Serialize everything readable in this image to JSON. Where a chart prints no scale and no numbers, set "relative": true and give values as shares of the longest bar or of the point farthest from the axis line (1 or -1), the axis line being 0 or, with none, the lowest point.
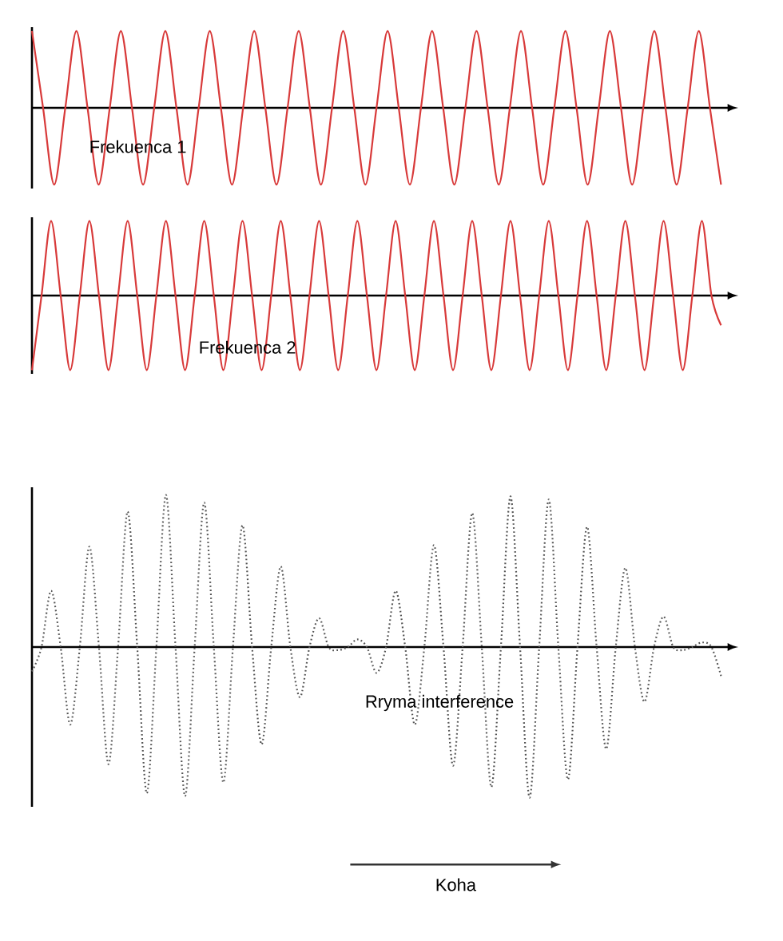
{
  "chart_data": [
    {
      "type": "line",
      "relative": true,
      "categories": [
        null,
        null,
        null,
        null,
        null,
        null,
        null,
        null,
        null,
        null,
        null,
        null,
        null,
        null,
        null,
        null,
        null,
        null,
        null,
        null,
        null,
        null,
        null,
        null,
        null,
        null,
        null,
        null,
        null,
        null,
        null,
        null,
        null,
        null,
        null,
        null,
        null,
        null,
        null,
        null,
        null,
        null,
        null,
        null,
        null,
        null,
        null,
        null,
        null,
        null,
        null,
        null,
        null,
        null,
        null,
        null,
        null,
        null,
        null,
        null,
        null,
        null,
        null
      ],
      "series": [
        {
          "name": "Frekuenca 1",
          "color": "#d83a3a",
          "values": [
            1,
            0,
            -1,
            0,
            1,
            0,
            -1,
            0,
            1,
            0,
            -1,
            0,
            1,
            0,
            -1,
            0,
            1,
            0,
            -1,
            0,
            1,
            0,
            -1,
            0,
            1,
            0,
            -1,
            0,
            1,
            0,
            -1,
            0,
            1,
            0,
            -1,
            0,
            1,
            0,
            -1,
            0,
            1,
            0,
            -1,
            0,
            1,
            0,
            -1,
            0,
            1,
            0,
            -1,
            0,
            1,
            0,
            -1,
            0,
            1,
            0,
            -1,
            0,
            1,
            0,
            -1
          ]
        }
      ]
    },
    {
      "type": "line",
      "relative": true,
      "categories": [
        null,
        null,
        null,
        null,
        null,
        null,
        null,
        null,
        null,
        null,
        null,
        null,
        null,
        null,
        null,
        null,
        null,
        null,
        null,
        null,
        null,
        null,
        null,
        null,
        null,
        null,
        null,
        null,
        null,
        null,
        null,
        null,
        null,
        null,
        null,
        null,
        null,
        null,
        null,
        null,
        null,
        null,
        null,
        null,
        null,
        null,
        null,
        null,
        null,
        null,
        null,
        null,
        null,
        null,
        null,
        null,
        null,
        null,
        null,
        null,
        null,
        null,
        null,
        null,
        null,
        null,
        null,
        null,
        null,
        null,
        null,
        null,
        null
      ],
      "series": [
        {
          "name": "Frekuenca 2",
          "color": "#d83a3a",
          "values": [
            -1,
            0,
            1,
            0,
            -1,
            0,
            1,
            0,
            -1,
            0,
            1,
            0,
            -1,
            0,
            1,
            0,
            -1,
            0,
            1,
            0,
            -1,
            0,
            1,
            0,
            -1,
            0,
            1,
            0,
            -1,
            0,
            1,
            0,
            -1,
            0,
            1,
            0,
            -1,
            0,
            1,
            0,
            -1,
            0,
            1,
            0,
            -1,
            0,
            1,
            0,
            -1,
            0,
            1,
            0,
            -1,
            0,
            1,
            0,
            -1,
            0,
            1,
            0,
            -1,
            0,
            1,
            0,
            -1,
            0,
            1,
            0,
            -1,
            0,
            1,
            0,
            -0.4
          ]
        }
      ]
    },
    {
      "type": "line",
      "relative": true,
      "xlabel": "Koha",
      "categories": [
        null,
        null,
        null,
        null,
        null,
        null,
        null,
        null,
        null,
        null,
        null,
        null,
        null,
        null,
        null,
        null,
        null,
        null,
        null,
        null,
        null,
        null,
        null,
        null,
        null,
        null,
        null,
        null,
        null,
        null,
        null,
        null,
        null,
        null,
        null,
        null,
        null,
        null,
        null,
        null,
        null,
        null,
        null,
        null,
        null,
        null,
        null,
        null,
        null,
        null,
        null,
        null,
        null,
        null,
        null,
        null,
        null,
        null,
        null,
        null,
        null,
        null,
        null,
        null,
        null,
        null,
        null,
        null,
        null,
        null,
        null,
        null,
        null
      ],
      "line_style": "dotted",
      "series": [
        {
          "name": "Rryma interference",
          "color": "#555555",
          "values": [
            -0.16,
            0,
            0.37,
            0,
            -0.51,
            0,
            0.66,
            0,
            -0.77,
            0,
            0.89,
            0,
            -0.96,
            0,
            1.0,
            0,
            -0.98,
            0,
            0.95,
            0,
            -0.89,
            0,
            0.8,
            0,
            -0.64,
            0,
            0.53,
            0,
            -0.33,
            0,
            0.19,
            0,
            -0.02,
            0,
            0.05,
            0,
            -0.17,
            0,
            0.37,
            0,
            -0.51,
            0,
            0.67,
            0,
            -0.78,
            0,
            0.88,
            0,
            -0.92,
            0,
            0.99,
            0,
            -0.99,
            0,
            0.97,
            0,
            -0.87,
            0,
            0.79,
            0,
            -0.67,
            0,
            0.52,
            0,
            -0.36,
            0,
            0.2,
            0,
            -0.02,
            0,
            0.03,
            0,
            -0.19
          ]
        }
      ]
    }
  ]
}
